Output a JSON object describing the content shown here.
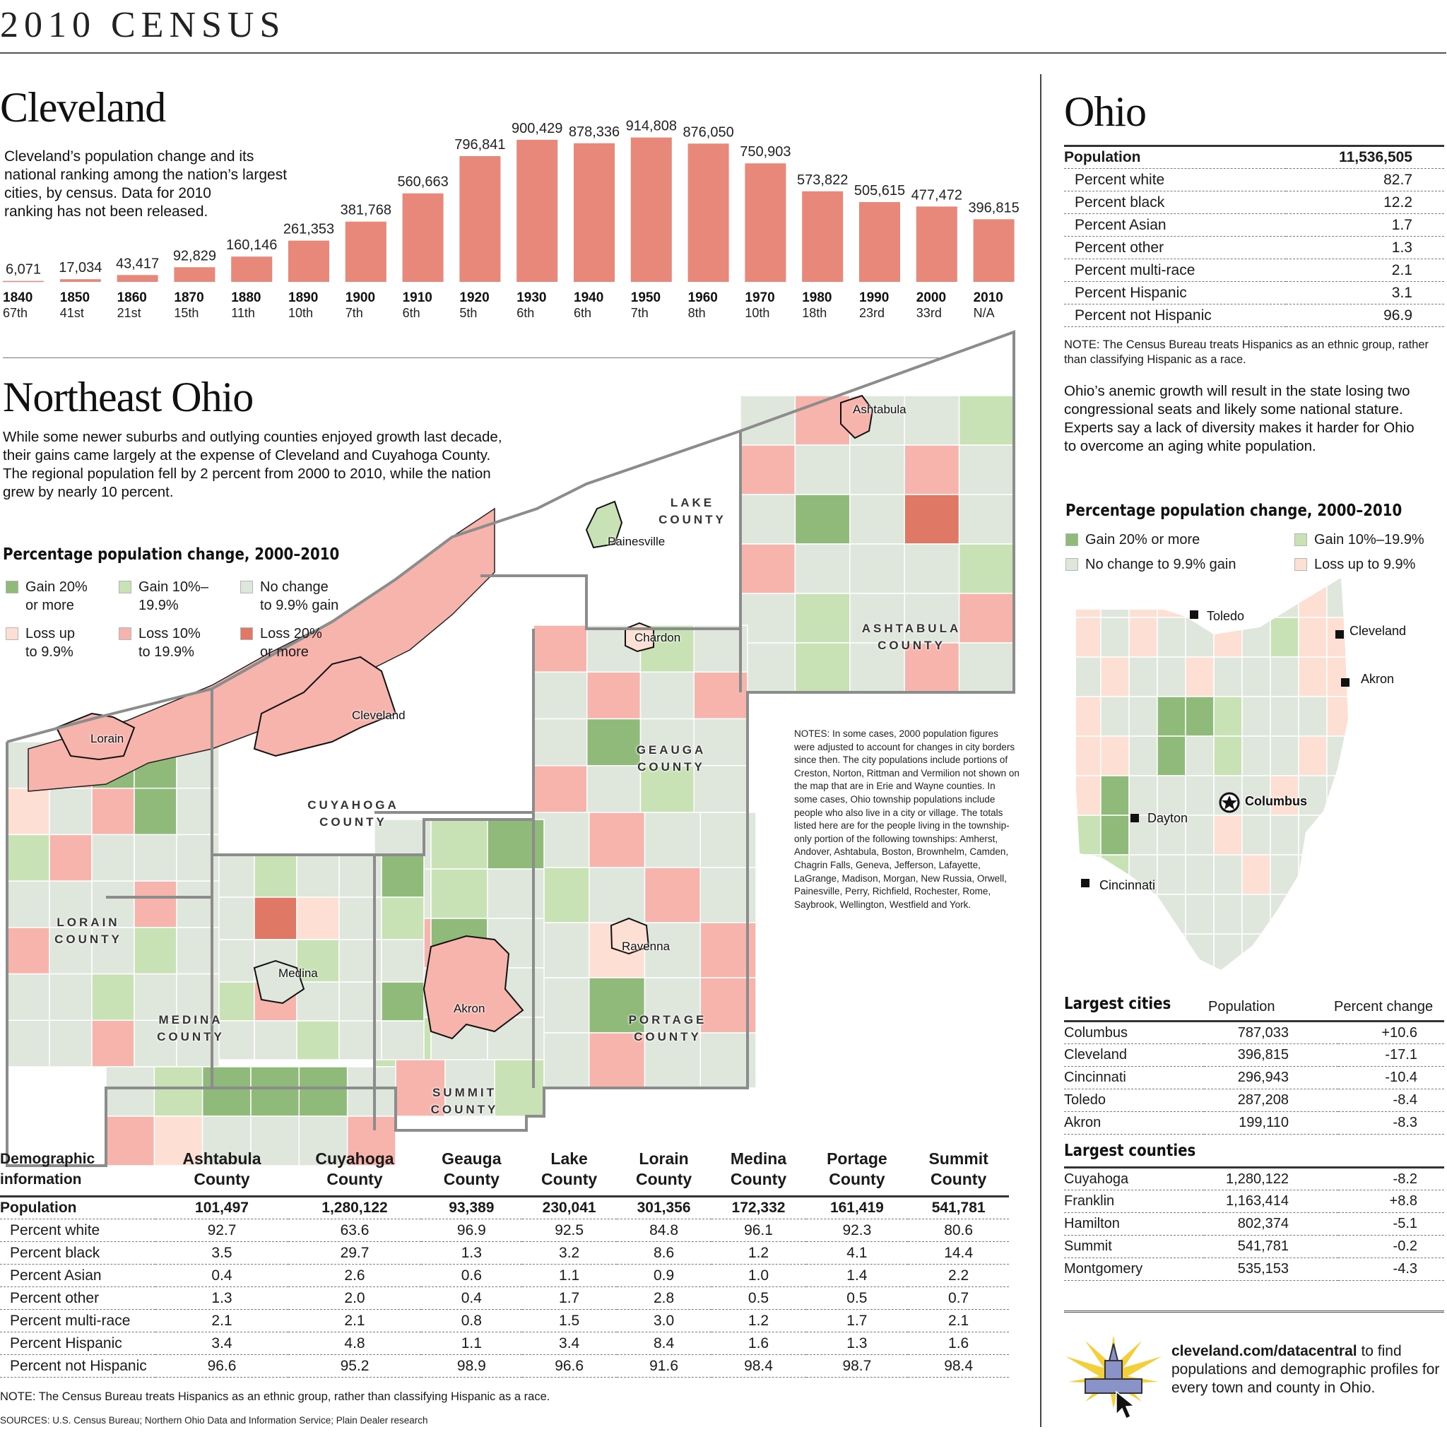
{
  "header": {
    "title": "2010 CENSUS"
  },
  "cleveland": {
    "title": "Cleveland",
    "deck": [
      "Cleveland’s population change and  its",
      "national ranking among the nation’s largest",
      "cities, by census. Data for 2010",
      "ranking has not been released."
    ]
  },
  "chart_data": {
    "type": "bar",
    "categories": [
      "1840",
      "1850",
      "1860",
      "1870",
      "1880",
      "1890",
      "1900",
      "1910",
      "1920",
      "1930",
      "1940",
      "1950",
      "1960",
      "1970",
      "1980",
      "1990",
      "2000",
      "2010"
    ],
    "values": [
      6071,
      17034,
      43417,
      92829,
      160146,
      261353,
      381768,
      560663,
      796841,
      900429,
      878336,
      914808,
      876050,
      750903,
      573822,
      505615,
      477472,
      396815
    ],
    "value_labels": [
      "6,071",
      "17,034",
      "43,417",
      "92,829",
      "160,146",
      "261,353",
      "381,768",
      "560,663",
      "796,841",
      "900,429",
      "878,336",
      "914,808",
      "876,050",
      "750,903",
      "573,822",
      "505,615",
      "477,472",
      "396,815"
    ],
    "rankings": [
      "67th",
      "41st",
      "21st",
      "15th",
      "11th",
      "10th",
      "7th",
      "6th",
      "5th",
      "6th",
      "6th",
      "7th",
      "8th",
      "10th",
      "18th",
      "23rd",
      "33rd",
      "N/A"
    ],
    "color": "#e8887a"
  },
  "northeast": {
    "title": "Northeast Ohio",
    "deck": [
      "While some newer suburbs and outlying counties enjoyed growth last decade,",
      "their gains came largely at the expense of Cleveland and Cuyahoga County.",
      "The regional population fell by 2 percent from 2000 to 2010, while the nation",
      "grew by nearly 10 percent."
    ],
    "legend_title": "Percentage population change, 2000–2010",
    "legend": [
      {
        "l1": "Gain 20%",
        "l2": "or more",
        "color": "#8fba7a"
      },
      {
        "l1": "Gain 10%–",
        "l2": "19.9%",
        "color": "#c9e2b5"
      },
      {
        "l1": "No change",
        "l2": "to 9.9% gain",
        "color": "#dfe6dc"
      },
      {
        "l1": "Loss up",
        "l2": "to 9.9%",
        "color": "#fde0d3"
      },
      {
        "l1": "Loss 10%",
        "l2": "to 19.9%",
        "color": "#f6b4ad"
      },
      {
        "l1": "Loss 20%",
        "l2": "or more",
        "color": "#e07866"
      }
    ],
    "counties": [
      {
        "l1": "LAKE",
        "l2": "COUNTY"
      },
      {
        "l1": "ASHTABULA",
        "l2": "COUNTY"
      },
      {
        "l1": "GEAUGA",
        "l2": "COUNTY"
      },
      {
        "l1": "CUYAHOGA",
        "l2": "COUNTY"
      },
      {
        "l1": "LORAIN",
        "l2": "COUNTY"
      },
      {
        "l1": "MEDINA",
        "l2": "COUNTY"
      },
      {
        "l1": "PORTAGE",
        "l2": "COUNTY"
      },
      {
        "l1": "SUMMIT",
        "l2": "COUNTY"
      }
    ],
    "cities": [
      "Ashtabula",
      "Painesville",
      "Chardon",
      "Cleveland",
      "Lorain",
      "Medina",
      "Akron",
      "Ravenna"
    ],
    "notes": "NOTES: In some cases, 2000 population figures were adjusted to account for changes in city borders since then. The city populations include portions of Creston, Norton, Rittman and Vermilion not shown on the map that are in Erie and Wayne counties. In some cases, Ohio township populations include people who also live in a city or village. The totals listed here are for the people living in the township-only portion of the following townships: Amherst, Andover, Ashtabula, Boston, Brownhelm, Camden, Chagrin Falls, Geneva, Jefferson, Lafayette, LaGrange, Madison, Morgan, New Russia, Orwell, Painesville, Perry, Richfield, Rochester, Rome, Saybrook, Wellington, Westfield and York."
  },
  "county_table": {
    "corner": [
      "Demographic",
      "information"
    ],
    "columns": [
      {
        "l1": "Ashtabula",
        "l2": "County"
      },
      {
        "l1": "Cuyahoga",
        "l2": "County"
      },
      {
        "l1": "Geauga",
        "l2": "County"
      },
      {
        "l1": "Lake",
        "l2": "County"
      },
      {
        "l1": "Lorain",
        "l2": "County"
      },
      {
        "l1": "Medina",
        "l2": "County"
      },
      {
        "l1": "Portage",
        "l2": "County"
      },
      {
        "l1": "Summit",
        "l2": "County"
      }
    ],
    "rows": [
      {
        "label": "Population",
        "values": [
          "101,497",
          "1,280,122",
          "93,389",
          "230,041",
          "301,356",
          "172,332",
          "161,419",
          "541,781"
        ]
      },
      {
        "label": "Percent white",
        "values": [
          "92.7",
          "63.6",
          "96.9",
          "92.5",
          "84.8",
          "96.1",
          "92.3",
          "80.6"
        ]
      },
      {
        "label": "Percent black",
        "values": [
          "3.5",
          "29.7",
          "1.3",
          "3.2",
          "8.6",
          "1.2",
          "4.1",
          "14.4"
        ]
      },
      {
        "label": "Percent Asian",
        "values": [
          "0.4",
          "2.6",
          "0.6",
          "1.1",
          "0.9",
          "1.0",
          "1.4",
          "2.2"
        ]
      },
      {
        "label": "Percent other",
        "values": [
          "1.3",
          "2.0",
          "0.4",
          "1.7",
          "2.8",
          "0.5",
          "0.5",
          "0.7"
        ]
      },
      {
        "label": "Percent multi-race",
        "values": [
          "2.1",
          "2.1",
          "0.8",
          "1.5",
          "3.0",
          "1.2",
          "1.7",
          "2.1"
        ]
      },
      {
        "label": "Percent Hispanic",
        "values": [
          "3.4",
          "4.8",
          "1.1",
          "3.4",
          "8.4",
          "1.6",
          "1.3",
          "1.6"
        ]
      },
      {
        "label": "Percent not Hispanic",
        "values": [
          "96.6",
          "95.2",
          "98.9",
          "96.6",
          "91.6",
          "98.4",
          "98.7",
          "98.4"
        ]
      }
    ],
    "note": "NOTE: The Census Bureau treats Hispanics as an ethnic group, rather than classifying Hispanic as a race.",
    "sources": "SOURCES: U.S. Census Bureau; Northern Ohio Data and Information Service; Plain Dealer research"
  },
  "ohio": {
    "title": "Ohio",
    "rows": [
      {
        "label": "Population",
        "value": "11,536,505"
      },
      {
        "label": "Percent white",
        "value": "82.7"
      },
      {
        "label": "Percent black",
        "value": "12.2"
      },
      {
        "label": "Percent Asian",
        "value": "1.7"
      },
      {
        "label": "Percent other",
        "value": "1.3"
      },
      {
        "label": "Percent multi-race",
        "value": "2.1"
      },
      {
        "label": "Percent Hispanic",
        "value": "3.1"
      },
      {
        "label": "Percent not Hispanic",
        "value": "96.9"
      }
    ],
    "note": "NOTE: The Census Bureau treats Hispanics as an ethnic group, rather than classifying Hispanic as a race.",
    "deck": [
      "Ohio’s anemic growth will result in the state losing two",
      "congressional seats and likely some national stature.",
      "Experts say a lack of diversity makes it harder for Ohio",
      "to overcome an aging white population."
    ],
    "legend_title": "Percentage population change, 2000–2010",
    "legend": [
      {
        "label": "Gain 20% or more",
        "color": "#8fba7a"
      },
      {
        "label": "Gain 10%–19.9%",
        "color": "#c9e2b5"
      },
      {
        "label": "No change to 9.9% gain",
        "color": "#dfe6dc"
      },
      {
        "label": "Loss up to 9.9%",
        "color": "#fde0d3"
      }
    ],
    "cities": [
      "Toledo",
      "Cleveland",
      "Akron",
      "Columbus",
      "Dayton",
      "Cincinnati"
    ]
  },
  "largest_cities": {
    "title": "Largest cities",
    "col_pop": "Population",
    "col_change": "Percent change",
    "rows": [
      {
        "name": "Columbus",
        "pop": "787,033",
        "change": "+10.6"
      },
      {
        "name": "Cleveland",
        "pop": "396,815",
        "change": "-17.1"
      },
      {
        "name": "Cincinnati",
        "pop": "296,943",
        "change": "-10.4"
      },
      {
        "name": "Toledo",
        "pop": "287,208",
        "change": "-8.4"
      },
      {
        "name": "Akron",
        "pop": "199,110",
        "change": "-8.3"
      }
    ]
  },
  "largest_counties": {
    "title": "Largest counties",
    "rows": [
      {
        "name": "Cuyahoga",
        "pop": "1,280,122",
        "change": "-8.2"
      },
      {
        "name": "Franklin",
        "pop": "1,163,414",
        "change": "+8.8"
      },
      {
        "name": "Hamilton",
        "pop": "802,374",
        "change": "-5.1"
      },
      {
        "name": "Summit",
        "pop": "541,781",
        "change": "-0.2"
      },
      {
        "name": "Montgomery",
        "pop": "535,153",
        "change": "-4.3"
      }
    ]
  },
  "promo": {
    "link": "cleveland.com/datacentral",
    "text": " to find populations and demographic profiles for every town and county in Ohio."
  }
}
